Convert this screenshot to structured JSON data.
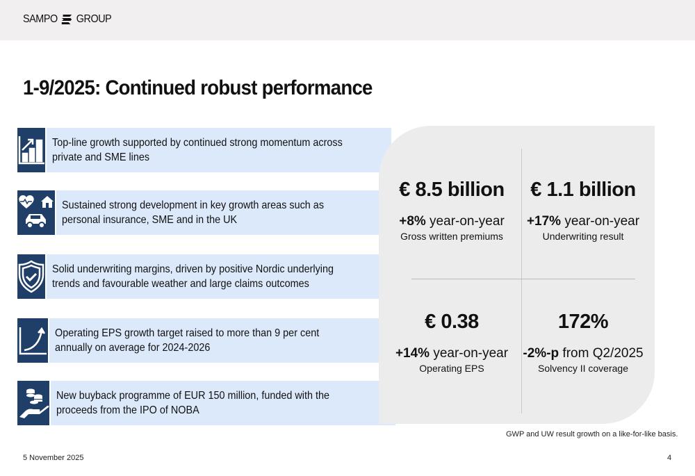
{
  "header": {
    "logo_left": "SAMPO",
    "logo_right": "GROUP"
  },
  "title": "1-9/2025: Continued robust performance",
  "colors": {
    "icon_box": "#1f3f68",
    "text_box": "#dbe9fa",
    "panel": "#ececec"
  },
  "items": [
    {
      "icon": "bar-chart-growth-icon",
      "text": "Top-line growth supported by continued strong momentum across private and SME lines"
    },
    {
      "icon": "health-home-car-icon",
      "text": "Sustained strong development in key growth areas such as personal insurance, SME and in the UK"
    },
    {
      "icon": "shield-check-icon",
      "text": "Solid underwriting margins, driven by positive Nordic underlying trends and favourable weather and large claims outcomes"
    },
    {
      "icon": "growth-curve-icon",
      "text": "Operating EPS growth target raised to more than 9 per cent annually on average for 2024-2026"
    },
    {
      "icon": "coins-hand-icon",
      "text": "New buyback programme of EUR 150 million, funded with the proceeds from the IPO of NOBA"
    }
  ],
  "kpis": [
    {
      "value": "€ 8.5 billion",
      "change": "+8%",
      "change_suffix": " year-on-year",
      "label": "Gross written premiums"
    },
    {
      "value": "€ 1.1 billion",
      "change": "+17%",
      "change_suffix": " year-on-year",
      "label": "Underwriting result"
    },
    {
      "value": "€ 0.38",
      "change": "+14%",
      "change_suffix": " year-on-year",
      "label": "Operating EPS"
    },
    {
      "value": "172%",
      "change": "-2%-p",
      "change_suffix": " from Q2/2025",
      "label": "Solvency II coverage"
    }
  ],
  "note": "GWP and UW result growth on a like-for-like basis.",
  "footer": {
    "date": "5 November 2025",
    "page": "4"
  }
}
